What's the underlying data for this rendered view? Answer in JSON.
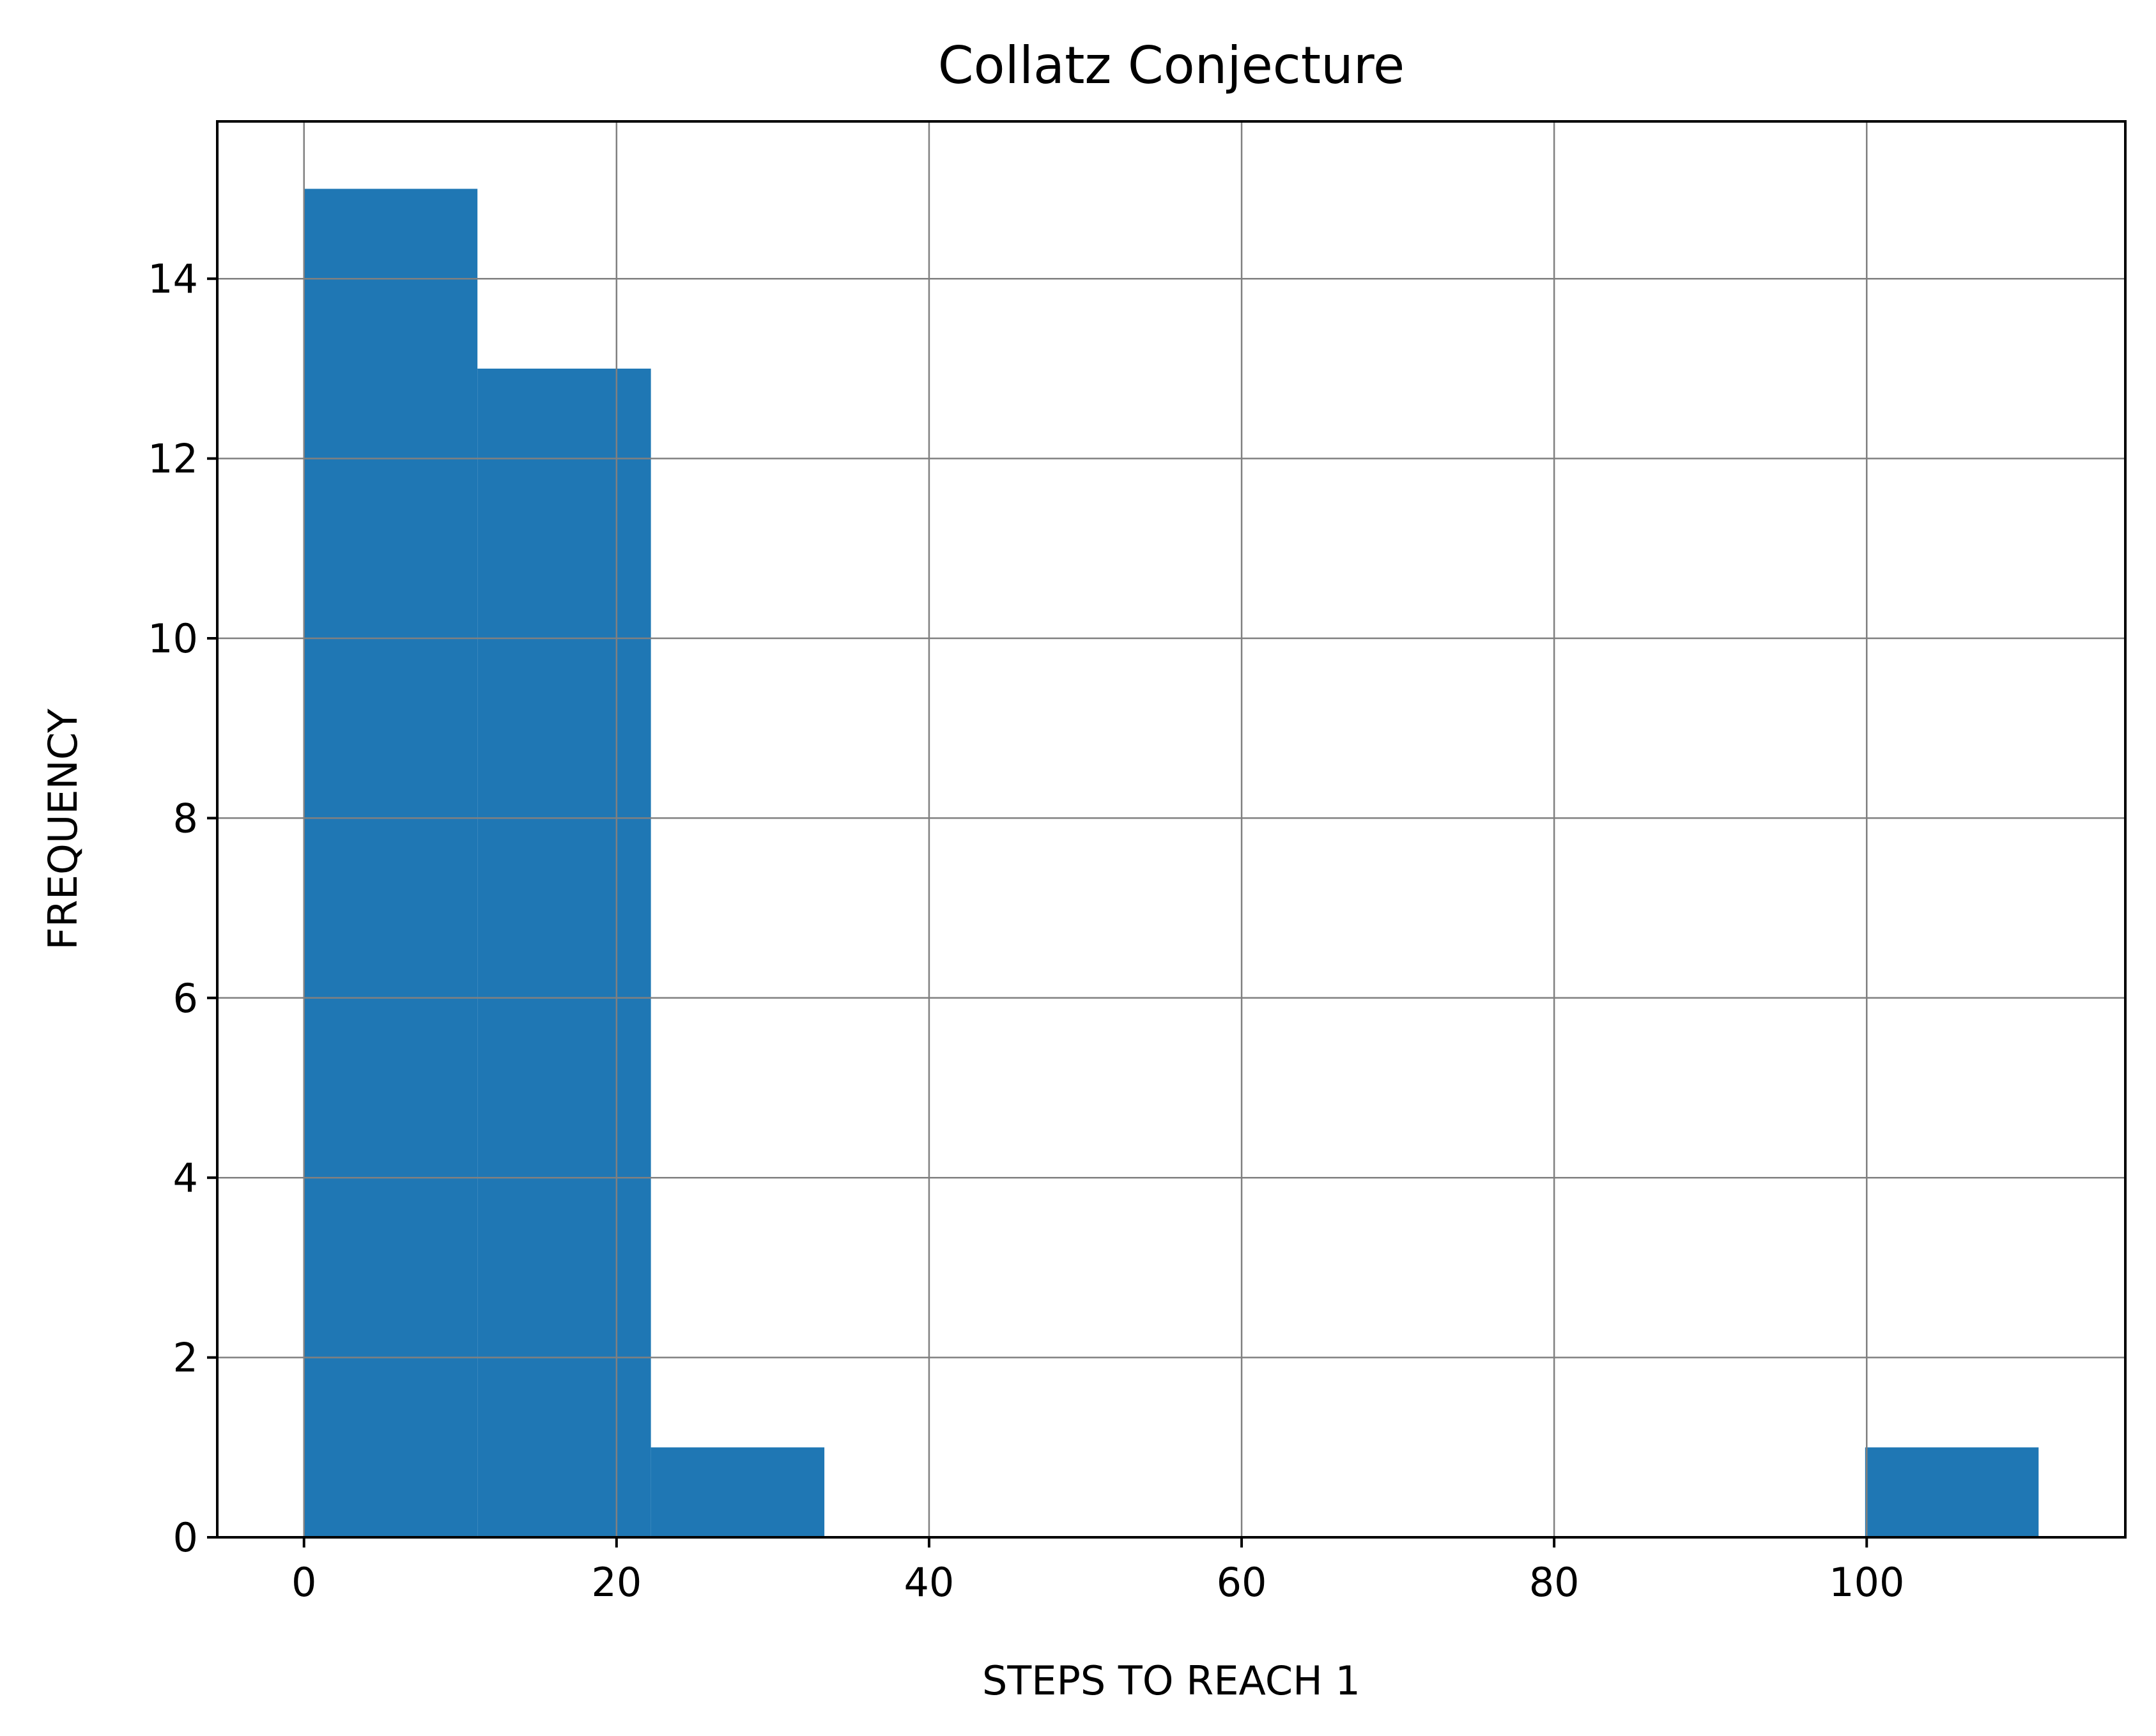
{
  "chart_data": {
    "type": "bar",
    "title": "Collatz Conjecture",
    "xlabel": "STEPS TO REACH 1",
    "ylabel": "FREQUENCY",
    "bins": [
      {
        "start": 0,
        "end": 11.1,
        "count": 15
      },
      {
        "start": 11.1,
        "end": 22.2,
        "count": 13
      },
      {
        "start": 22.2,
        "end": 33.3,
        "count": 1
      },
      {
        "start": 33.3,
        "end": 44.4,
        "count": 0
      },
      {
        "start": 44.4,
        "end": 55.5,
        "count": 0
      },
      {
        "start": 55.5,
        "end": 66.6,
        "count": 0
      },
      {
        "start": 66.6,
        "end": 77.7,
        "count": 0
      },
      {
        "start": 77.7,
        "end": 88.8,
        "count": 0
      },
      {
        "start": 88.8,
        "end": 99.9,
        "count": 0
      },
      {
        "start": 99.9,
        "end": 111,
        "count": 1
      }
    ],
    "xlim": [
      -5.55,
      116.55
    ],
    "ylim": [
      0,
      15.75
    ],
    "xticks": [
      0,
      20,
      40,
      60,
      80,
      100
    ],
    "yticks": [
      0,
      2,
      4,
      6,
      8,
      10,
      12,
      14
    ],
    "grid": true,
    "bar_color": "#1f77b4",
    "grid_color": "#808080"
  }
}
